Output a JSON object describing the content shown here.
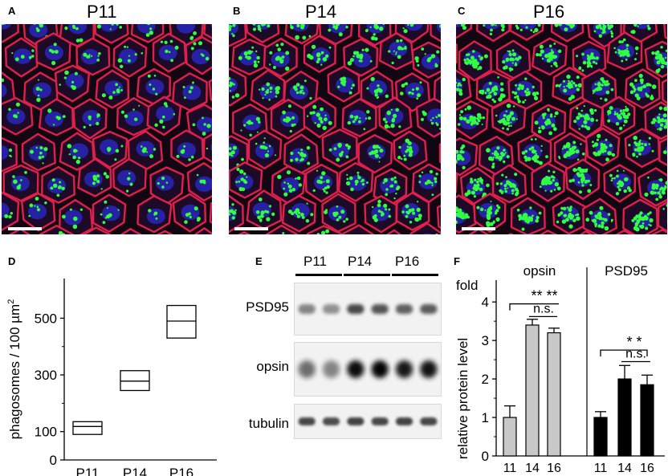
{
  "panels": {
    "A": {
      "letter": "A",
      "title": "P11"
    },
    "B": {
      "letter": "B",
      "title": "P14"
    },
    "C": {
      "letter": "C",
      "title": "P16"
    },
    "D": {
      "letter": "D"
    },
    "E": {
      "letter": "E"
    },
    "F": {
      "letter": "F"
    }
  },
  "colors": {
    "membrane": "#e0204a",
    "nucleus": "#2a2ad0",
    "phagosome": "#30ff40",
    "background": "#120612"
  },
  "micrographs": [
    {
      "key": "A",
      "phagosome_density": "low"
    },
    {
      "key": "B",
      "phagosome_density": "medium"
    },
    {
      "key": "C",
      "phagosome_density": "high"
    }
  ],
  "blot": {
    "groups": [
      "P11",
      "P14",
      "P16"
    ],
    "rows": [
      "PSD95",
      "opsin",
      "tubulin"
    ]
  },
  "chart_data": [
    {
      "type": "box",
      "panel": "D",
      "ylabel_main": "phagosomes / 100 µm",
      "ylabel_sup": "2",
      "categories": [
        "P11",
        "P14",
        "P16"
      ],
      "boxes": [
        {
          "category": "P11",
          "low": 90,
          "median": 118,
          "high": 135
        },
        {
          "category": "P14",
          "low": 245,
          "median": 278,
          "high": 315
        },
        {
          "category": "P16",
          "low": 430,
          "median": 490,
          "high": 545
        }
      ],
      "yticks": [
        "0",
        "100",
        "300",
        "500"
      ],
      "ylim": [
        0,
        640
      ]
    },
    {
      "type": "bar",
      "panel": "F",
      "ylabel": "relative protein level",
      "yunit": "fold",
      "yticks": [
        "0",
        "1",
        "2",
        "3",
        "4"
      ],
      "ylim": [
        0,
        4.4
      ],
      "series": [
        {
          "name": "opsin",
          "color": "#c8c8c8",
          "categories": [
            "11",
            "14",
            "16"
          ],
          "values": [
            1.0,
            3.4,
            3.2
          ],
          "errors": [
            0.3,
            0.15,
            0.12
          ]
        },
        {
          "name": "PSD95",
          "color": "#000000",
          "categories": [
            "11",
            "14",
            "16"
          ],
          "values": [
            1.0,
            2.0,
            1.85
          ],
          "errors": [
            0.15,
            0.35,
            0.25
          ]
        }
      ],
      "annotations": {
        "opsin_sig_far": "** **",
        "opsin_ns": "n.s.",
        "psd_sig_far": "*   *",
        "psd_ns": "n.s."
      }
    }
  ]
}
